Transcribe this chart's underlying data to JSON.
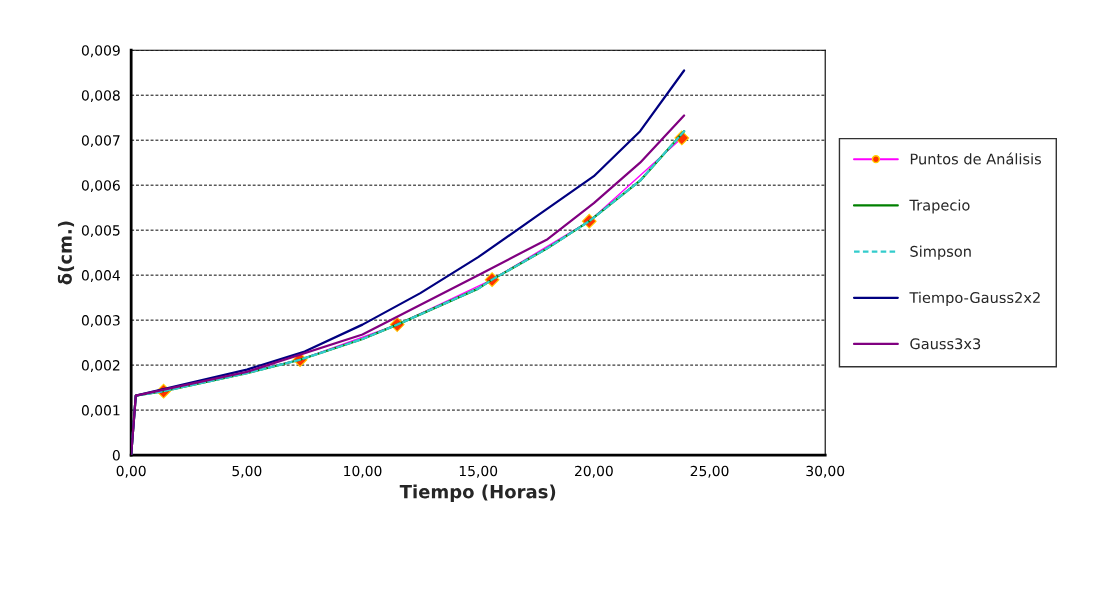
{
  "chart_data": {
    "type": "line",
    "xlabel": "Tiempo (Horas)",
    "ylabel": "δ(cm.)",
    "xlim": [
      0,
      30
    ],
    "ylim": [
      0,
      0.009
    ],
    "xticks": [
      {
        "value": 0,
        "label": "0,00"
      },
      {
        "value": 5,
        "label": "5,00"
      },
      {
        "value": 10,
        "label": "10,00"
      },
      {
        "value": 15,
        "label": "15,00"
      },
      {
        "value": 20,
        "label": "20,00"
      },
      {
        "value": 25,
        "label": "25,00"
      },
      {
        "value": 30,
        "label": "30,00"
      }
    ],
    "yticks": [
      0,
      {
        "value": 0.001,
        "label": "0,001"
      },
      {
        "value": 0.002,
        "label": "0,002"
      },
      {
        "value": 0.003,
        "label": "0,003"
      },
      {
        "value": 0.004,
        "label": "0,004"
      },
      {
        "value": 0.005,
        "label": "0,005"
      },
      {
        "value": 0.006,
        "label": "0,006"
      },
      {
        "value": 0.007,
        "label": "0,007"
      },
      {
        "value": 0.008,
        "label": "0,008"
      },
      {
        "value": 0.009,
        "label": "0,009"
      }
    ],
    "grid": "y",
    "legend": "right",
    "series": [
      {
        "name": "Puntos de Análisis",
        "color": "#ff00ff",
        "marker": "diamond",
        "x": [
          1.4,
          7.3,
          11.5,
          15.6,
          19.8,
          23.8
        ],
        "values": [
          0.00142,
          0.00212,
          0.0029,
          0.0039,
          0.0052,
          0.00705
        ]
      },
      {
        "name": "Trapecio",
        "color": "#008000",
        "line_style": "solid",
        "x": [
          0,
          0.2,
          1.4,
          5,
          7.3,
          10,
          11.5,
          15,
          15.6,
          18,
          19.8,
          22,
          23.9
        ],
        "values": [
          0,
          0.00132,
          0.00142,
          0.00182,
          0.00212,
          0.00258,
          0.0029,
          0.0037,
          0.0039,
          0.0046,
          0.0052,
          0.0061,
          0.0072
        ]
      },
      {
        "name": "Simpson",
        "color": "#33cccc",
        "line_style": "dashed",
        "x": [
          0,
          0.2,
          1.4,
          5,
          7.3,
          10,
          11.5,
          15,
          15.6,
          18,
          19.8,
          22,
          23.9
        ],
        "values": [
          0,
          0.00132,
          0.00142,
          0.00182,
          0.00212,
          0.00258,
          0.0029,
          0.0037,
          0.0039,
          0.0046,
          0.0052,
          0.0061,
          0.0072
        ]
      },
      {
        "name": "Tiempo-Gauss2x2",
        "color": "#000080",
        "line_style": "solid",
        "x": [
          0,
          0.2,
          5,
          7.5,
          10,
          12.5,
          15,
          17.5,
          20,
          22,
          23.9
        ],
        "values": [
          0,
          0.00132,
          0.0019,
          0.0023,
          0.0029,
          0.0036,
          0.0044,
          0.0053,
          0.0062,
          0.0072,
          0.00855
        ]
      },
      {
        "name": "Gauss3x3",
        "color": "#800080",
        "line_style": "solid",
        "x": [
          0,
          0.2,
          5,
          10,
          15,
          18,
          20,
          22,
          23.9
        ],
        "values": [
          0,
          0.00132,
          0.00185,
          0.00268,
          0.004,
          0.0048,
          0.0056,
          0.0065,
          0.00755
        ]
      }
    ]
  }
}
